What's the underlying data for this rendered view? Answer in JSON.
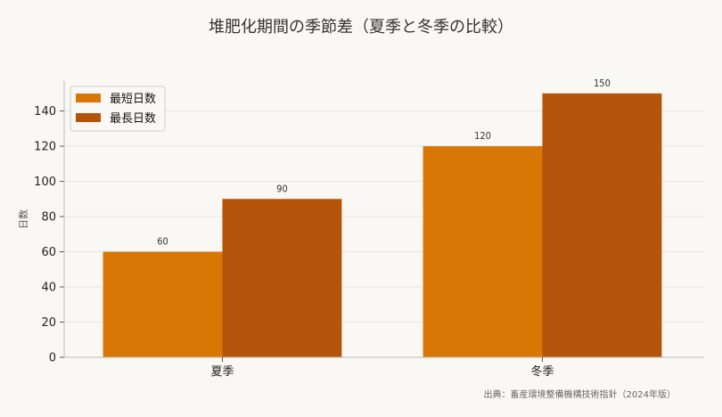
{
  "chart_data": {
    "type": "bar",
    "title": "堆肥化期間の季節差（夏季と冬季の比較）",
    "xlabel": "",
    "ylabel": "日数",
    "categories": [
      "夏季",
      "冬季"
    ],
    "series": [
      {
        "name": "最短日数",
        "values": [
          60,
          120
        ],
        "color": "#d97706"
      },
      {
        "name": "最長日数",
        "values": [
          90,
          150
        ],
        "color": "#b45309"
      }
    ],
    "ylim": [
      0,
      157
    ],
    "yticks": [
      0,
      20,
      40,
      60,
      80,
      100,
      120,
      140
    ],
    "grid": true,
    "legend_position": "top-left",
    "data_labels": true,
    "source": "出典：畜産環境整備機構技術指針（2024年版）"
  }
}
